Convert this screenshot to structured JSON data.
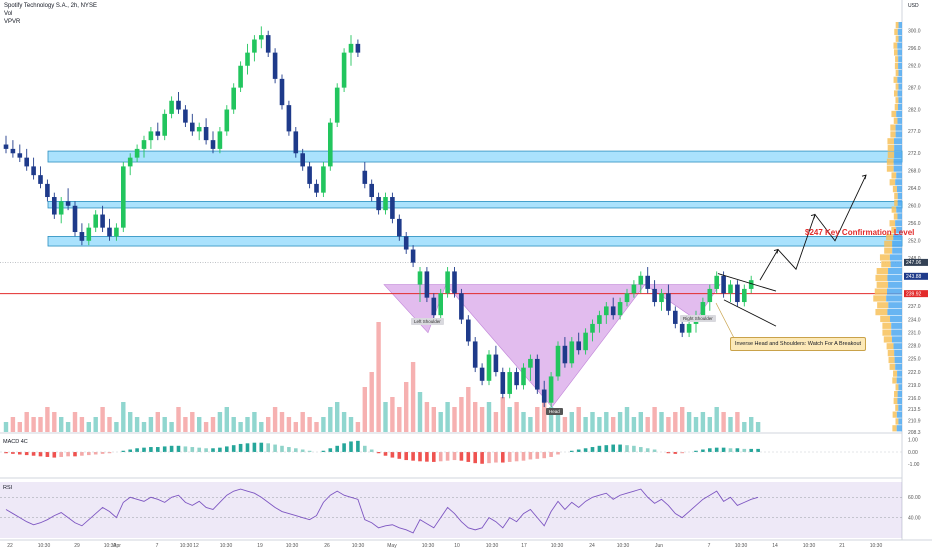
{
  "header": {
    "title": "Spotify Technology S.A., 2h, NYSE",
    "indicator_1": "Vol",
    "indicator_2": "VPVR",
    "currency": "USD"
  },
  "annotations": {
    "key_level": "$247 Key Confirmation Level",
    "callout": "Inverse Head and Shoulders: Watch For A Breakout",
    "left_shoulder": "Left Shoulder",
    "head": "Head",
    "right_shoulder": "Right Shoulder"
  },
  "colors": {
    "up": "#22c55e",
    "down": "#1e3a8a",
    "zone": "#7dd3fc",
    "pattern": "#d8a6e8",
    "support": "#e22b2b",
    "vol_up": "#7ccfc7",
    "vol_down": "#f5a3a3",
    "vpvr": "#4ea8f0",
    "vpvr_alt": "#f7c15a"
  },
  "chart_data": [
    {
      "type": "candlestick",
      "title": "Spotify Technology S.A., 2h, NYSE",
      "ylim": [
        208.3,
        302
      ],
      "price_ticks": [
        300.0,
        296.0,
        292.0,
        287.0,
        282.0,
        277.0,
        272.0,
        268.0,
        264.0,
        260.0,
        256.0,
        252.0,
        248.0,
        244.0,
        240.0,
        237.0,
        234.0,
        231.0,
        228.0,
        225.0,
        222.0,
        219.0,
        216.0,
        213.5,
        210.9,
        208.3
      ],
      "current_labels": [
        "247.06",
        "243.88",
        "239.92"
      ],
      "x_ticks": [
        "22",
        "10:30",
        "29",
        "10:30",
        "Apr",
        "7",
        "10:30",
        "12",
        "10:30",
        "19",
        "10:30",
        "26",
        "10:30",
        "May",
        "10:30",
        "10",
        "10:30",
        "17",
        "10:30",
        "24",
        "10:30",
        "Jun",
        "7",
        "10:30",
        "14",
        "10:30",
        "21",
        "10:30",
        "28",
        "10:30"
      ],
      "candles": [
        [
          274,
          276,
          272,
          273
        ],
        [
          273,
          275,
          271,
          272
        ],
        [
          272,
          274,
          270,
          271
        ],
        [
          271,
          273,
          268,
          269
        ],
        [
          269,
          271,
          266,
          267
        ],
        [
          267,
          269,
          264,
          265
        ],
        [
          265,
          266,
          261,
          262
        ],
        [
          262,
          263,
          257,
          258
        ],
        [
          258,
          262,
          256,
          261
        ],
        [
          261,
          264,
          259,
          260
        ],
        [
          260,
          261,
          253,
          254
        ],
        [
          254,
          256,
          251,
          252
        ],
        [
          252,
          256,
          251,
          255
        ],
        [
          255,
          259,
          254,
          258
        ],
        [
          258,
          260,
          254,
          255
        ],
        [
          255,
          257,
          252,
          253
        ],
        [
          253,
          256,
          252,
          255
        ],
        [
          255,
          270,
          254,
          269
        ],
        [
          269,
          272,
          267,
          271
        ],
        [
          271,
          274,
          270,
          273
        ],
        [
          273,
          276,
          271,
          275
        ],
        [
          275,
          278,
          273,
          277
        ],
        [
          277,
          279,
          275,
          276
        ],
        [
          276,
          282,
          275,
          281
        ],
        [
          281,
          285,
          280,
          284
        ],
        [
          284,
          286,
          281,
          282
        ],
        [
          282,
          283,
          278,
          279
        ],
        [
          279,
          281,
          276,
          277
        ],
        [
          277,
          279,
          275,
          278
        ],
        [
          278,
          280,
          274,
          275
        ],
        [
          275,
          277,
          272,
          273
        ],
        [
          273,
          278,
          272,
          277
        ],
        [
          277,
          283,
          276,
          282
        ],
        [
          282,
          288,
          281,
          287
        ],
        [
          287,
          293,
          286,
          292
        ],
        [
          292,
          297,
          290,
          295
        ],
        [
          295,
          299,
          293,
          298
        ],
        [
          298,
          301,
          296,
          299
        ],
        [
          299,
          300,
          294,
          295
        ],
        [
          295,
          296,
          288,
          289
        ],
        [
          289,
          290,
          282,
          283
        ],
        [
          283,
          284,
          276,
          277
        ],
        [
          277,
          278,
          271,
          272
        ],
        [
          272,
          273,
          268,
          269
        ],
        [
          269,
          270,
          264,
          265
        ],
        [
          265,
          266,
          262,
          263
        ],
        [
          263,
          270,
          262,
          269
        ],
        [
          269,
          280,
          268,
          279
        ],
        [
          279,
          288,
          278,
          287
        ],
        [
          287,
          296,
          286,
          295
        ],
        [
          295,
          299,
          292,
          297
        ],
        [
          297,
          298,
          294,
          295
        ],
        [
          268,
          270,
          264,
          265
        ],
        [
          265,
          266,
          261,
          262
        ],
        [
          262,
          263,
          258,
          259
        ],
        [
          259,
          263,
          258,
          262
        ],
        [
          262,
          263,
          256,
          257
        ],
        [
          257,
          258,
          252,
          253
        ],
        [
          253,
          254,
          249,
          250
        ],
        [
          250,
          251,
          246,
          247
        ],
        [
          242,
          246,
          238,
          245
        ],
        [
          245,
          246,
          238,
          239
        ],
        [
          239,
          240,
          234,
          235
        ],
        [
          235,
          241,
          234,
          240
        ],
        [
          240,
          246,
          239,
          245
        ],
        [
          245,
          246,
          239,
          240
        ],
        [
          240,
          241,
          233,
          234
        ],
        [
          234,
          235,
          228,
          229
        ],
        [
          229,
          230,
          222,
          223
        ],
        [
          223,
          224,
          219,
          220
        ],
        [
          220,
          227,
          219,
          226
        ],
        [
          226,
          228,
          221,
          222
        ],
        [
          222,
          223,
          216,
          217
        ],
        [
          217,
          223,
          216,
          222
        ],
        [
          222,
          223,
          218,
          219
        ],
        [
          219,
          224,
          218,
          223
        ],
        [
          223,
          226,
          220,
          225
        ],
        [
          225,
          226,
          217,
          218
        ],
        [
          218,
          220,
          214,
          215
        ],
        [
          215,
          222,
          214,
          221
        ],
        [
          221,
          229,
          220,
          228
        ],
        [
          228,
          230,
          223,
          224
        ],
        [
          224,
          230,
          223,
          229
        ],
        [
          229,
          231,
          226,
          227
        ],
        [
          227,
          232,
          226,
          231
        ],
        [
          231,
          234,
          229,
          233
        ],
        [
          233,
          236,
          231,
          235
        ],
        [
          235,
          238,
          233,
          237
        ],
        [
          237,
          239,
          234,
          235
        ],
        [
          235,
          239,
          234,
          238
        ],
        [
          238,
          241,
          237,
          240
        ],
        [
          240,
          243,
          239,
          242
        ],
        [
          242,
          245,
          240,
          244
        ],
        [
          244,
          246,
          240,
          241
        ],
        [
          241,
          243,
          237,
          238
        ],
        [
          238,
          241,
          236,
          240
        ],
        [
          240,
          242,
          235,
          236
        ],
        [
          236,
          237,
          232,
          233
        ],
        [
          233,
          234,
          230,
          231
        ],
        [
          231,
          234,
          230,
          233
        ],
        [
          233,
          236,
          231,
          235
        ],
        [
          235,
          239,
          234,
          238
        ],
        [
          238,
          242,
          236,
          241
        ],
        [
          241,
          245,
          240,
          244
        ],
        [
          244,
          245,
          239,
          240
        ],
        [
          240,
          243,
          238,
          242
        ],
        [
          242,
          243,
          237,
          238
        ],
        [
          238,
          242,
          237,
          241
        ],
        [
          241,
          244,
          240,
          243
        ]
      ],
      "resistance_zones": [
        [
          270,
          272.5
        ],
        [
          259.5,
          261
        ],
        [
          250.8,
          253
        ]
      ],
      "support_level": 239.92,
      "key_level": 247,
      "projection_path": [
        [
          243,
          246
        ],
        [
          247,
          248
        ],
        [
          255,
          258
        ],
        [
          249,
          252
        ],
        [
          263,
          267
        ]
      ]
    },
    {
      "type": "bar",
      "title": "Vol",
      "values": [
        2,
        3,
        2,
        4,
        3,
        3,
        5,
        4,
        3,
        2,
        4,
        3,
        2,
        3,
        5,
        3,
        2,
        6,
        4,
        3,
        2,
        3,
        4,
        3,
        2,
        5,
        3,
        4,
        3,
        2,
        3,
        4,
        5,
        3,
        2,
        3,
        4,
        2,
        3,
        5,
        4,
        3,
        2,
        4,
        3,
        2,
        3,
        5,
        6,
        4,
        3,
        2,
        9,
        12,
        22,
        6,
        7,
        5,
        10,
        14,
        8,
        6,
        5,
        4,
        6,
        5,
        7,
        9,
        6,
        5,
        6,
        4,
        7,
        5,
        6,
        4,
        3,
        5,
        8,
        5,
        4,
        3,
        4,
        5,
        3,
        4,
        3,
        4,
        3,
        4,
        5,
        3,
        4,
        3,
        5,
        4,
        3,
        4,
        5,
        4,
        3,
        4,
        3,
        5,
        4,
        3,
        4,
        2,
        3,
        2
      ],
      "direction": [
        1,
        0,
        0,
        0,
        0,
        0,
        0,
        0,
        1,
        1,
        0,
        0,
        1,
        1,
        0,
        0,
        1,
        1,
        1,
        1,
        1,
        1,
        0,
        1,
        1,
        0,
        0,
        0,
        1,
        0,
        0,
        1,
        1,
        1,
        1,
        1,
        1,
        1,
        0,
        0,
        0,
        0,
        0,
        0,
        0,
        0,
        1,
        1,
        1,
        1,
        1,
        0,
        0,
        0,
        0,
        1,
        0,
        0,
        0,
        0,
        1,
        0,
        0,
        1,
        1,
        0,
        0,
        0,
        0,
        0,
        1,
        0,
        0,
        1,
        0,
        1,
        1,
        0,
        0,
        1,
        1,
        0,
        1,
        0,
        1,
        1,
        1,
        1,
        0,
        1,
        1,
        1,
        1,
        0,
        0,
        1,
        0,
        0,
        0,
        1,
        1,
        1,
        1,
        1,
        0,
        1,
        0,
        1,
        1,
        1
      ]
    },
    {
      "type": "bar",
      "title": "MACD 4C",
      "ylim": [
        -1.25,
        1.25
      ],
      "y_ticks": [
        "1.00",
        "0.00",
        "-1.00"
      ],
      "values": [
        -0.1,
        -0.15,
        -0.2,
        -0.25,
        -0.3,
        -0.35,
        -0.4,
        -0.45,
        -0.4,
        -0.35,
        -0.35,
        -0.3,
        -0.25,
        -0.2,
        -0.15,
        -0.1,
        0.0,
        0.1,
        0.2,
        0.3,
        0.35,
        0.4,
        0.4,
        0.45,
        0.5,
        0.5,
        0.45,
        0.4,
        0.35,
        0.3,
        0.3,
        0.35,
        0.45,
        0.55,
        0.65,
        0.7,
        0.75,
        0.75,
        0.7,
        0.6,
        0.5,
        0.4,
        0.3,
        0.2,
        0.1,
        0.0,
        0.1,
        0.3,
        0.5,
        0.7,
        0.85,
        0.9,
        0.5,
        0.2,
        -0.1,
        -0.3,
        -0.45,
        -0.55,
        -0.65,
        -0.7,
        -0.75,
        -0.78,
        -0.8,
        -0.75,
        -0.7,
        -0.65,
        -0.7,
        -0.8,
        -0.9,
        -0.95,
        -0.9,
        -0.85,
        -0.85,
        -0.8,
        -0.75,
        -0.7,
        -0.6,
        -0.55,
        -0.5,
        -0.4,
        -0.2,
        0.0,
        0.1,
        0.2,
        0.3,
        0.4,
        0.5,
        0.55,
        0.6,
        0.6,
        0.55,
        0.5,
        0.4,
        0.3,
        0.2,
        0.0,
        -0.1,
        -0.15,
        -0.1,
        0.0,
        0.1,
        0.2,
        0.3,
        0.35,
        0.35,
        0.3,
        0.3,
        0.25,
        0.25,
        0.25
      ]
    },
    {
      "type": "line",
      "title": "RSI",
      "ylim": [
        20,
        75
      ],
      "y_ticks": [
        "60.00",
        "40.00"
      ],
      "values": [
        48,
        44,
        40,
        36,
        33,
        35,
        38,
        42,
        45,
        40,
        35,
        32,
        38,
        44,
        50,
        46,
        40,
        55,
        60,
        58,
        56,
        60,
        58,
        55,
        60,
        62,
        55,
        52,
        56,
        50,
        48,
        55,
        62,
        66,
        68,
        66,
        64,
        60,
        55,
        50,
        46,
        44,
        42,
        40,
        38,
        42,
        55,
        62,
        66,
        62,
        60,
        58,
        38,
        35,
        30,
        32,
        33,
        30,
        28,
        25,
        38,
        34,
        30,
        40,
        50,
        44,
        36,
        30,
        28,
        30,
        40,
        36,
        30,
        40,
        36,
        44,
        48,
        40,
        32,
        46,
        56,
        48,
        55,
        50,
        56,
        60,
        62,
        64,
        58,
        62,
        64,
        66,
        68,
        60,
        54,
        58,
        52,
        44,
        40,
        46,
        52,
        58,
        62,
        66,
        56,
        60,
        52,
        55,
        58,
        60
      ]
    }
  ]
}
